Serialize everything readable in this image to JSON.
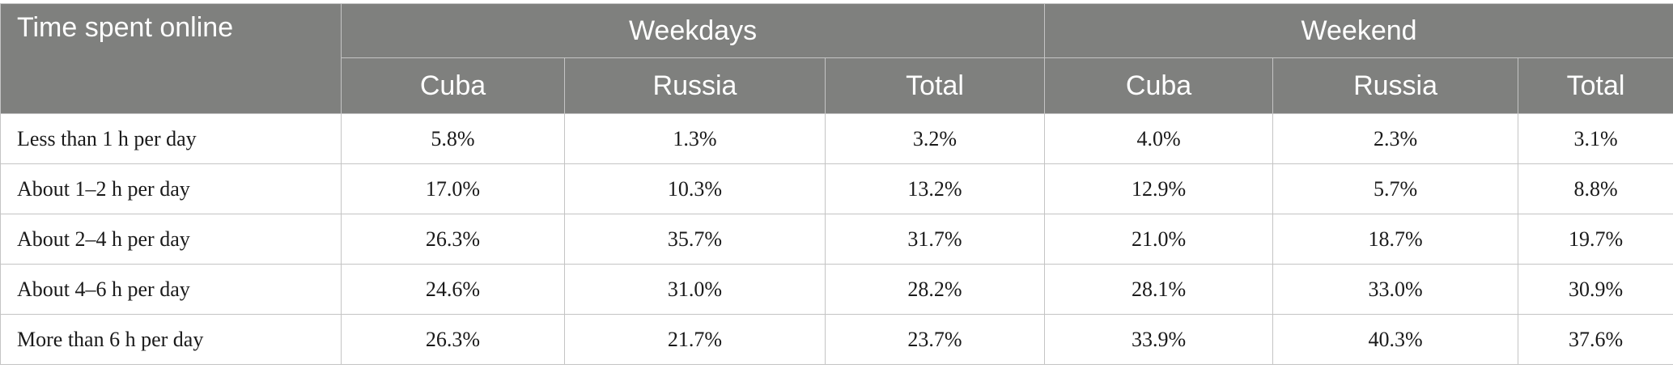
{
  "table": {
    "corner_header": "Time spent online",
    "groups": [
      "Weekdays",
      "Weekend"
    ],
    "subheaders": [
      "Cuba",
      "Russia",
      "Total",
      "Cuba",
      "Russia",
      "Total"
    ],
    "rows": [
      {
        "label": "Less than 1 h per day",
        "values": [
          "5.8%",
          "1.3%",
          "3.2%",
          "4.0%",
          "2.3%",
          "3.1%"
        ]
      },
      {
        "label": "About 1–2 h per day",
        "values": [
          "17.0%",
          "10.3%",
          "13.2%",
          "12.9%",
          "5.7%",
          "8.8%"
        ]
      },
      {
        "label": "About 2–4 h per day",
        "values": [
          "26.3%",
          "35.7%",
          "31.7%",
          "21.0%",
          "18.7%",
          "19.7%"
        ]
      },
      {
        "label": "About 4–6 h per day",
        "values": [
          "24.6%",
          "31.0%",
          "28.2%",
          "28.1%",
          "33.0%",
          "30.9%"
        ]
      },
      {
        "label": "More than 6 h per day",
        "values": [
          "26.3%",
          "21.7%",
          "23.7%",
          "33.9%",
          "40.3%",
          "37.6%"
        ]
      }
    ]
  },
  "colors": {
    "header_bg": "#7f807e",
    "header_text": "#ffffff",
    "border": "#c4c4c4"
  }
}
